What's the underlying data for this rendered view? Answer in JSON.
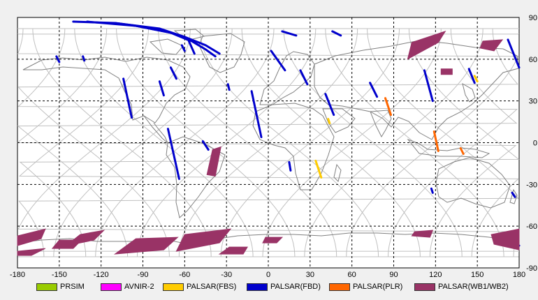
{
  "map": {
    "projection": "equirectangular",
    "lon_range": [
      -180,
      180
    ],
    "lat_range": [
      -90,
      90
    ],
    "x_ticks": [
      "-180",
      "-150",
      "-120",
      "-90",
      "-60",
      "-30",
      "0",
      "30",
      "60",
      "90",
      "120",
      "150",
      "180"
    ],
    "y_ticks": [
      "90",
      "60",
      "30",
      "0",
      "-30",
      "-60",
      "-90"
    ],
    "grid": "dashed",
    "colors": {
      "background": "#ffffff",
      "coastline": "#808080",
      "orbit_track": "#c0c0c0",
      "grid": "#000000"
    }
  },
  "legend": {
    "items": [
      {
        "label": "PRSIM",
        "color": "#99cc00"
      },
      {
        "label": "AVNIR-2",
        "color": "#ff00ff"
      },
      {
        "label": "PALSAR(FBS)",
        "color": "#ffcc00"
      },
      {
        "label": "PALSAR(FBD)",
        "color": "#0000cc"
      },
      {
        "label": "PALSAR(PLR)",
        "color": "#ff6600"
      },
      {
        "label": "PALSAR(WB1/WB2)",
        "color": "#993366"
      }
    ]
  },
  "chart_data": {
    "type": "map",
    "swaths": [
      {
        "sensor": "PALSAR(FBD)",
        "points": [
          [
            -140,
            87
          ],
          [
            -110,
            86
          ],
          [
            -80,
            82
          ],
          [
            -60,
            76
          ],
          [
            -45,
            70
          ],
          [
            -35,
            64
          ]
        ]
      },
      {
        "sensor": "PALSAR(FBD)",
        "points": [
          [
            -130,
            87
          ],
          [
            -95,
            84
          ],
          [
            -70,
            79
          ],
          [
            -55,
            73
          ],
          [
            -45,
            67
          ],
          [
            -38,
            62
          ]
        ]
      },
      {
        "sensor": "PALSAR(FBD)",
        "points": [
          [
            -110,
            86
          ],
          [
            -78,
            82
          ],
          [
            -60,
            76
          ],
          [
            -50,
            70
          ]
        ]
      },
      {
        "sensor": "PALSAR(FBD)",
        "points": [
          [
            -95,
            84
          ],
          [
            -70,
            79
          ],
          [
            -58,
            74
          ]
        ]
      },
      {
        "sensor": "PALSAR(FBD)",
        "points": [
          [
            -152,
            62
          ],
          [
            -150,
            58
          ]
        ]
      },
      {
        "sensor": "PALSAR(FBD)",
        "points": [
          [
            -133,
            62
          ],
          [
            -132,
            59
          ]
        ]
      },
      {
        "sensor": "PALSAR(FBD)",
        "points": [
          [
            -62,
            70
          ],
          [
            -60,
            66
          ]
        ]
      },
      {
        "sensor": "PALSAR(FBD)",
        "points": [
          [
            -57,
            73
          ],
          [
            -53,
            64
          ]
        ]
      },
      {
        "sensor": "PALSAR(FBD)",
        "points": [
          [
            -70,
            54
          ],
          [
            -66,
            46
          ]
        ]
      },
      {
        "sensor": "PALSAR(FBD)",
        "points": [
          [
            -104,
            46
          ],
          [
            -98,
            18
          ]
        ]
      },
      {
        "sensor": "PALSAR(FBD)",
        "points": [
          [
            -78,
            44
          ],
          [
            -75,
            34
          ]
        ]
      },
      {
        "sensor": "PALSAR(FBD)",
        "points": [
          [
            -72,
            10
          ],
          [
            -64,
            -26
          ]
        ]
      },
      {
        "sensor": "PALSAR(FBD)",
        "points": [
          [
            -47,
            1
          ],
          [
            -43,
            -5
          ]
        ]
      },
      {
        "sensor": "PALSAR(FBD)",
        "points": [
          [
            -29,
            42
          ],
          [
            -28,
            38
          ]
        ]
      },
      {
        "sensor": "PALSAR(FBD)",
        "points": [
          [
            -12,
            37
          ],
          [
            -5,
            4
          ]
        ]
      },
      {
        "sensor": "PALSAR(FBD)",
        "points": [
          [
            2,
            66
          ],
          [
            12,
            52
          ]
        ]
      },
      {
        "sensor": "PALSAR(FBD)",
        "points": [
          [
            10,
            80
          ],
          [
            20,
            77
          ]
        ]
      },
      {
        "sensor": "PALSAR(FBD)",
        "points": [
          [
            46,
            80
          ],
          [
            52,
            77
          ]
        ]
      },
      {
        "sensor": "PALSAR(FBD)",
        "points": [
          [
            23,
            52
          ],
          [
            28,
            42
          ]
        ]
      },
      {
        "sensor": "PALSAR(FBD)",
        "points": [
          [
            41,
            35
          ],
          [
            47,
            20
          ]
        ]
      },
      {
        "sensor": "PALSAR(FBD)",
        "points": [
          [
            73,
            43
          ],
          [
            78,
            33
          ]
        ]
      },
      {
        "sensor": "PALSAR(FBD)",
        "points": [
          [
            112,
            52
          ],
          [
            118,
            30
          ]
        ]
      },
      {
        "sensor": "PALSAR(FBD)",
        "points": [
          [
            144,
            53
          ],
          [
            148,
            43
          ]
        ]
      },
      {
        "sensor": "PALSAR(FBD)",
        "points": [
          [
            172,
            74
          ],
          [
            180,
            54
          ]
        ]
      },
      {
        "sensor": "PALSAR(FBD)",
        "points": [
          [
            15,
            -14
          ],
          [
            16,
            -20
          ]
        ]
      },
      {
        "sensor": "PALSAR(FBD)",
        "points": [
          [
            117,
            -33
          ],
          [
            118,
            -36
          ]
        ]
      },
      {
        "sensor": "PALSAR(FBD)",
        "points": [
          [
            175,
            -36
          ],
          [
            177,
            -39
          ]
        ]
      },
      {
        "sensor": "PALSAR(FBD)",
        "points": [
          [
            167,
            -70
          ],
          [
            180,
            -74
          ]
        ]
      },
      {
        "sensor": "PALSAR(FBS)",
        "points": [
          [
            34,
            -13
          ],
          [
            38,
            -25
          ]
        ]
      },
      {
        "sensor": "PALSAR(FBS)",
        "points": [
          [
            43,
            17
          ],
          [
            44,
            14
          ]
        ]
      },
      {
        "sensor": "PALSAR(FBS)",
        "points": [
          [
            148,
            48
          ],
          [
            150,
            44
          ]
        ]
      },
      {
        "sensor": "PALSAR(PLR)",
        "points": [
          [
            84,
            32
          ],
          [
            88,
            20
          ]
        ]
      },
      {
        "sensor": "PALSAR(PLR)",
        "points": [
          [
            119,
            8
          ],
          [
            122,
            -6
          ]
        ]
      },
      {
        "sensor": "PALSAR(PLR)",
        "points": [
          [
            138,
            -4
          ],
          [
            140,
            -8
          ]
        ]
      },
      {
        "sensor": "PALSAR(WB1/WB2)",
        "polygon": [
          [
            103,
            72
          ],
          [
            127,
            80
          ],
          [
            122,
            72
          ],
          [
            100,
            60
          ]
        ]
      },
      {
        "sensor": "PALSAR(WB1/WB2)",
        "polygon": [
          [
            154,
            73
          ],
          [
            168,
            74
          ],
          [
            162,
            66
          ],
          [
            152,
            68
          ]
        ]
      },
      {
        "sensor": "PALSAR(WB1/WB2)",
        "polygon": [
          [
            124,
            53
          ],
          [
            132,
            53
          ],
          [
            132,
            49
          ],
          [
            124,
            49
          ]
        ]
      },
      {
        "sensor": "PALSAR(WB1/WB2)",
        "polygon": [
          [
            -40,
            -5
          ],
          [
            -34,
            -3
          ],
          [
            -38,
            -24
          ],
          [
            -44,
            -23
          ]
        ]
      },
      {
        "sensor": "PALSAR(WB1/WB2)",
        "polygon": [
          [
            -180,
            -67
          ],
          [
            -160,
            -62
          ],
          [
            -163,
            -69
          ],
          [
            -180,
            -74
          ]
        ]
      },
      {
        "sensor": "PALSAR(WB1/WB2)",
        "polygon": [
          [
            -135,
            -66
          ],
          [
            -118,
            -63
          ],
          [
            -125,
            -70
          ],
          [
            -145,
            -74
          ]
        ]
      },
      {
        "sensor": "PALSAR(WB1/WB2)",
        "polygon": [
          [
            -150,
            -70
          ],
          [
            -134,
            -70
          ],
          [
            -140,
            -76
          ],
          [
            -155,
            -76
          ]
        ]
      },
      {
        "sensor": "PALSAR(WB1/WB2)",
        "polygon": [
          [
            -180,
            -78
          ],
          [
            -160,
            -76
          ],
          [
            -170,
            -81
          ],
          [
            -180,
            -81
          ]
        ]
      },
      {
        "sensor": "PALSAR(WB1/WB2)",
        "polygon": [
          [
            -95,
            -69
          ],
          [
            -65,
            -68
          ],
          [
            -75,
            -77
          ],
          [
            -110,
            -80
          ]
        ]
      },
      {
        "sensor": "PALSAR(WB1/WB2)",
        "polygon": [
          [
            -60,
            -66
          ],
          [
            -27,
            -62
          ],
          [
            -35,
            -72
          ],
          [
            -66,
            -78
          ]
        ]
      },
      {
        "sensor": "PALSAR(WB1/WB2)",
        "polygon": [
          [
            -28,
            -75
          ],
          [
            -15,
            -75
          ],
          [
            -18,
            -80
          ],
          [
            -35,
            -80
          ]
        ]
      },
      {
        "sensor": "PALSAR(WB1/WB2)",
        "polygon": [
          [
            -2,
            -68
          ],
          [
            10,
            -68
          ],
          [
            6,
            -72
          ],
          [
            -4,
            -72
          ]
        ]
      },
      {
        "sensor": "PALSAR(WB1/WB2)",
        "polygon": [
          [
            105,
            -64
          ],
          [
            118,
            -63
          ],
          [
            116,
            -68
          ],
          [
            103,
            -67
          ]
        ]
      },
      {
        "sensor": "PALSAR(WB1/WB2)",
        "polygon": [
          [
            160,
            -66
          ],
          [
            180,
            -62
          ],
          [
            180,
            -77
          ],
          [
            162,
            -73
          ]
        ]
      }
    ]
  }
}
